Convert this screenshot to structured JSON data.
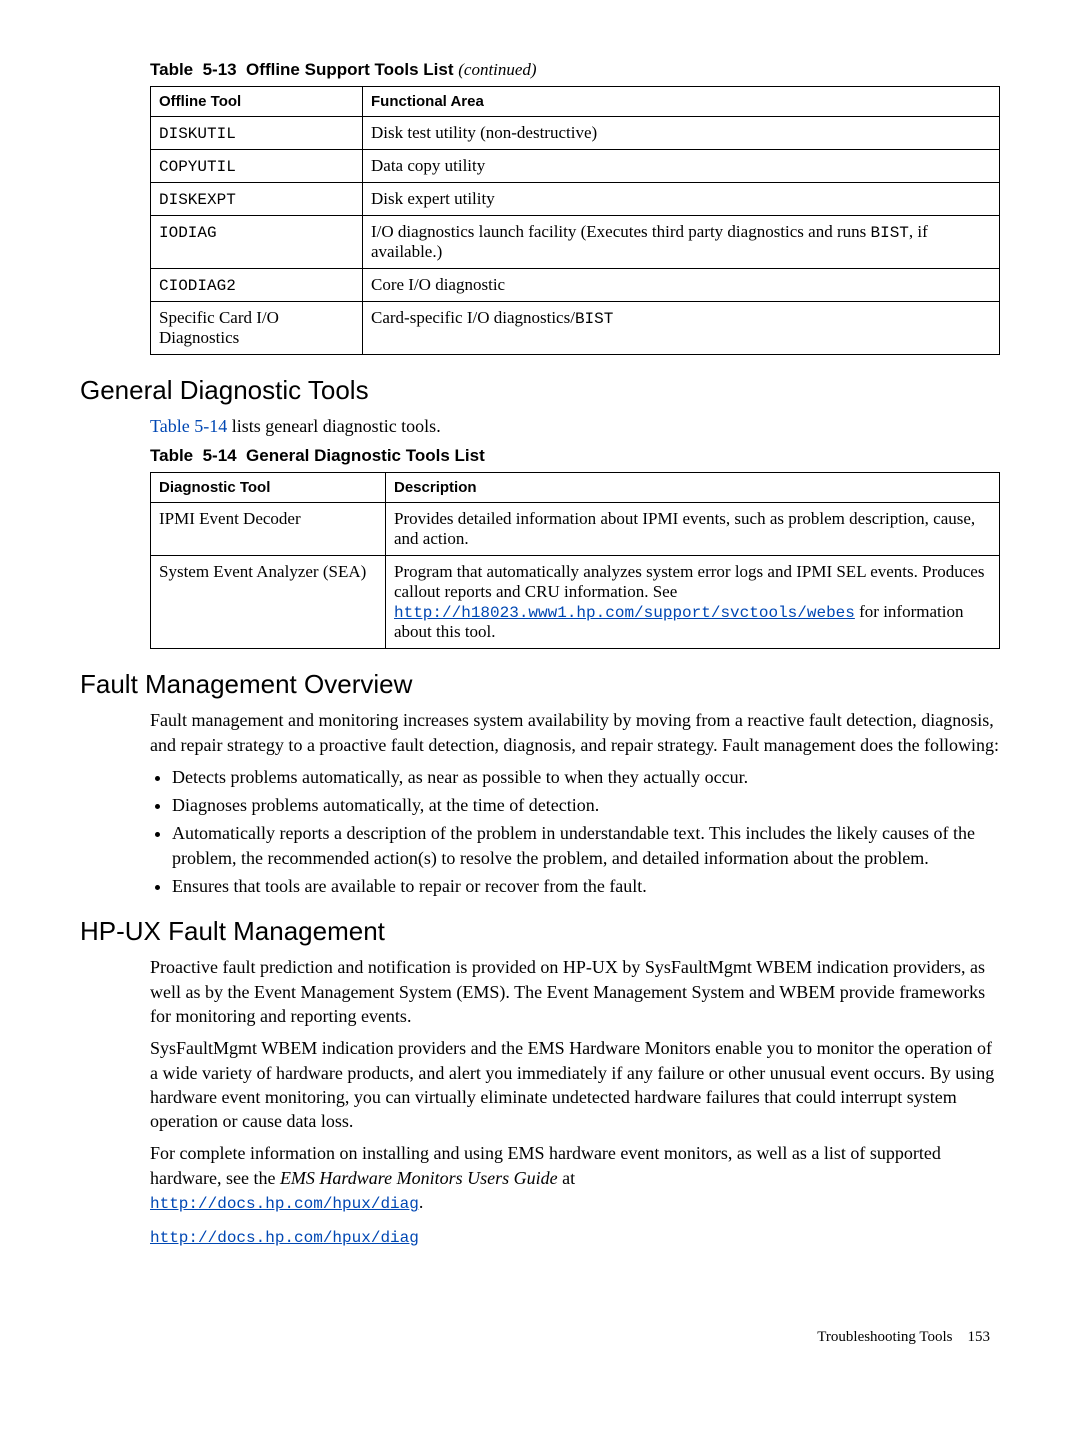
{
  "table513": {
    "caption_prefix": "Table  5-13  Offline Support Tools List ",
    "caption_cont": "(continued)",
    "headers": [
      "Offline Tool",
      "Functional Area"
    ],
    "rows": [
      {
        "c0": "DISKUTIL",
        "c0_mono": true,
        "c1": "Disk test utility (non-destructive)"
      },
      {
        "c0": "COPYUTIL",
        "c0_mono": true,
        "c1": "Data copy utility"
      },
      {
        "c0": "DISKEXPT",
        "c0_mono": true,
        "c1": "Disk expert utility"
      },
      {
        "c0": "IODIAG",
        "c0_mono": true,
        "c1_pre": "I/O diagnostics launch facility (Executes third party diagnostics and runs ",
        "c1_mono": "BIST",
        "c1_post": ", if available.)"
      },
      {
        "c0": "CIODIAG2",
        "c0_mono": true,
        "c1": "Core I/O diagnostic"
      },
      {
        "c0": "Specific Card I/O Diagnostics",
        "c0_mono": false,
        "c1_pre": "Card-specific I/O diagnostics/",
        "c1_mono": "BIST",
        "c1_post": ""
      }
    ]
  },
  "sec_gdt": {
    "heading": "General Diagnostic Tools",
    "intro_xref": "Table 5-14",
    "intro_rest": " lists genearl diagnostic tools."
  },
  "table514": {
    "caption": "Table  5-14  General Diagnostic Tools List",
    "headers": [
      "Diagnostic Tool",
      "Description"
    ],
    "rows": [
      {
        "c0": "IPMI Event Decoder",
        "c1": "Provides detailed information about IPMI events, such as problem description, cause, and action."
      },
      {
        "c0": "System Event Analyzer (SEA)",
        "c1_pre": "Program that automatically analyzes system error logs and IPMI SEL events. Produces callout reports and CRU information. See ",
        "c1_link": "http://h18023.www1.hp.com/support/svctools/webes",
        "c1_post": " for information about this tool."
      }
    ]
  },
  "sec_fmo": {
    "heading": "Fault Management Overview",
    "para": "Fault management and monitoring increases system availability by moving from a reactive fault detection, diagnosis, and repair strategy to a proactive fault detection, diagnosis, and repair strategy. Fault management does the following:",
    "bullets": [
      "Detects problems automatically, as near as possible to when they actually occur.",
      "Diagnoses problems automatically, at the time of detection.",
      "Automatically reports a description of the problem in understandable text. This includes the likely causes of the problem, the recommended action(s) to resolve the problem, and detailed information about the problem.",
      "Ensures that tools are available to repair or recover from the fault."
    ]
  },
  "sec_hpux": {
    "heading": "HP-UX Fault Management",
    "p1": "Proactive fault prediction and notification is provided on HP-UX by SysFaultMgmt WBEM indication providers, as well as by the Event Management System (EMS). The Event Management System and WBEM provide frameworks for monitoring and reporting events.",
    "p2": "SysFaultMgmt WBEM indication providers and the EMS Hardware Monitors enable you to monitor the operation of a wide variety of hardware products, and alert you immediately if any failure or other unusual event occurs. By using hardware event monitoring, you can virtually eliminate undetected hardware failures that could interrupt system operation or cause data loss.",
    "p3_pre": "For complete information on installing and using EMS hardware event monitors, as well as a list of supported hardware, see the ",
    "p3_italic": "EMS Hardware Monitors Users Guide",
    "p3_post": " at ",
    "p3_link": "http://docs.hp.com/hpux/diag",
    "p3_end": ".",
    "p4_link": "http://docs.hp.com/hpux/diag"
  },
  "footer": {
    "label": "Troubleshooting Tools",
    "page": "153"
  }
}
